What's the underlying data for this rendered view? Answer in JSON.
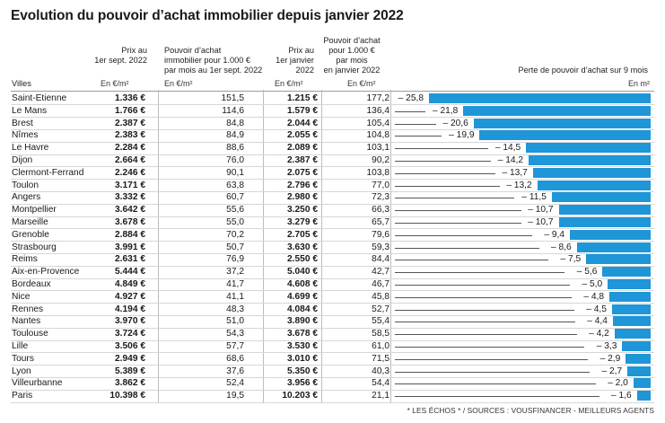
{
  "title": "Evolution du pouvoir d’achat immobilier depuis janvier 2022",
  "headers": {
    "villes": "Villes",
    "price_sept": [
      "Prix au",
      "1er sept. 2022"
    ],
    "power_sept": [
      "Pouvoir d’achat",
      "immobilier pour 1.000 €",
      "par mois au 1er sept. 2022"
    ],
    "price_jan": [
      "Prix au",
      "1er janvier",
      "2022"
    ],
    "power_jan": [
      "Pouvoir d’achat",
      "pour 1.000 €",
      "par mois",
      "en janvier 2022"
    ],
    "loss": "Perte de pouvoir d’achat sur 9 mois",
    "unit_eur_m2": "En €/m²",
    "unit_m2": "En m²"
  },
  "footer": "* LES ÉCHOS * / SOURCES : VOUSFINANCER - MEILLEURS AGENTS",
  "colors": {
    "bar": "#1e96d8"
  },
  "chart_data": {
    "type": "table",
    "columns": [
      "Villes",
      "Prix au 1er sept. 2022",
      "Pouvoir d’achat immobilier pour 1.000 € par mois au 1er sept. 2022",
      "Prix au 1er janvier 2022",
      "Pouvoir d’achat pour 1.000 € par mois en janvier 2022",
      "Perte de pouvoir d’achat sur 9 mois"
    ],
    "loss_axis": {
      "min": 0,
      "max": 25.8,
      "direction": "right-to-left"
    },
    "rows": [
      {
        "city": "Saint-Etienne",
        "price_sept": "1.336 €",
        "power_sept": "151,5",
        "price_jan": "1.215 €",
        "power_jan": "177,2",
        "loss_label": "– 25,8",
        "loss": 25.8
      },
      {
        "city": "Le Mans",
        "price_sept": "1.766 €",
        "power_sept": "114,6",
        "price_jan": "1.579 €",
        "power_jan": "136,4",
        "loss_label": "– 21,8",
        "loss": 21.8
      },
      {
        "city": "Brest",
        "price_sept": "2.387 €",
        "power_sept": "84,8",
        "price_jan": "2.044 €",
        "power_jan": "105,4",
        "loss_label": "– 20,6",
        "loss": 20.6
      },
      {
        "city": "Nîmes",
        "price_sept": "2.383 €",
        "power_sept": "84,9",
        "price_jan": "2.055 €",
        "power_jan": "104,8",
        "loss_label": "– 19,9",
        "loss": 19.9
      },
      {
        "city": "Le Havre",
        "price_sept": "2.284 €",
        "power_sept": "88,6",
        "price_jan": "2.089 €",
        "power_jan": "103,1",
        "loss_label": "– 14,5",
        "loss": 14.5
      },
      {
        "city": "Dijon",
        "price_sept": "2.664 €",
        "power_sept": "76,0",
        "price_jan": "2.387 €",
        "power_jan": "90,2",
        "loss_label": "– 14,2",
        "loss": 14.2
      },
      {
        "city": "Clermont-Ferrand",
        "price_sept": "2.246 €",
        "power_sept": "90,1",
        "price_jan": "2.075 €",
        "power_jan": "103,8",
        "loss_label": "– 13,7",
        "loss": 13.7
      },
      {
        "city": "Toulon",
        "price_sept": "3.171 €",
        "power_sept": "63,8",
        "price_jan": "2.796 €",
        "power_jan": "77,0",
        "loss_label": "– 13,2",
        "loss": 13.2
      },
      {
        "city": "Angers",
        "price_sept": "3.332 €",
        "power_sept": "60,7",
        "price_jan": "2.980 €",
        "power_jan": "72,3",
        "loss_label": "– 11,5",
        "loss": 11.5
      },
      {
        "city": "Montpellier",
        "price_sept": "3.642 €",
        "power_sept": "55,6",
        "price_jan": "3.250 €",
        "power_jan": "66,3",
        "loss_label": "– 10,7",
        "loss": 10.7
      },
      {
        "city": "Marseille",
        "price_sept": "3.678 €",
        "power_sept": "55,0",
        "price_jan": "3.279 €",
        "power_jan": "65,7",
        "loss_label": "– 10,7",
        "loss": 10.7
      },
      {
        "city": "Grenoble",
        "price_sept": "2.884 €",
        "power_sept": "70,2",
        "price_jan": "2.705 €",
        "power_jan": "79,6",
        "loss_label": "– 9,4",
        "loss": 9.4
      },
      {
        "city": "Strasbourg",
        "price_sept": "3.991 €",
        "power_sept": "50,7",
        "price_jan": "3.630 €",
        "power_jan": "59,3",
        "loss_label": "– 8,6",
        "loss": 8.6
      },
      {
        "city": "Reims",
        "price_sept": "2.631 €",
        "power_sept": "76,9",
        "price_jan": "2.550 €",
        "power_jan": "84,4",
        "loss_label": "– 7,5",
        "loss": 7.5
      },
      {
        "city": "Aix-en-Provence",
        "price_sept": "5.444 €",
        "power_sept": "37,2",
        "price_jan": "5.040 €",
        "power_jan": "42,7",
        "loss_label": "– 5,6",
        "loss": 5.6
      },
      {
        "city": "Bordeaux",
        "price_sept": "4.849 €",
        "power_sept": "41,7",
        "price_jan": "4.608 €",
        "power_jan": "46,7",
        "loss_label": "– 5,0",
        "loss": 5.0
      },
      {
        "city": "Nice",
        "price_sept": "4.927 €",
        "power_sept": "41,1",
        "price_jan": "4.699 €",
        "power_jan": "45,8",
        "loss_label": "– 4,8",
        "loss": 4.8
      },
      {
        "city": "Rennes",
        "price_sept": "4.194 €",
        "power_sept": "48,3",
        "price_jan": "4.084 €",
        "power_jan": "52,7",
        "loss_label": "– 4,5",
        "loss": 4.5
      },
      {
        "city": "Nantes",
        "price_sept": "3.970 €",
        "power_sept": "51,0",
        "price_jan": "3.890 €",
        "power_jan": "55,4",
        "loss_label": "– 4,4",
        "loss": 4.4
      },
      {
        "city": "Toulouse",
        "price_sept": "3.724 €",
        "power_sept": "54,3",
        "price_jan": "3.678 €",
        "power_jan": "58,5",
        "loss_label": "– 4,2",
        "loss": 4.2
      },
      {
        "city": "Lille",
        "price_sept": "3.506 €",
        "power_sept": "57,7",
        "price_jan": "3.530 €",
        "power_jan": "61,0",
        "loss_label": "– 3,3",
        "loss": 3.3
      },
      {
        "city": "Tours",
        "price_sept": "2.949 €",
        "power_sept": "68,6",
        "price_jan": "3.010 €",
        "power_jan": "71,5",
        "loss_label": "– 2,9",
        "loss": 2.9
      },
      {
        "city": "Lyon",
        "price_sept": "5.389 €",
        "power_sept": "37,6",
        "price_jan": "5.350 €",
        "power_jan": "40,3",
        "loss_label": "– 2,7",
        "loss": 2.7
      },
      {
        "city": "Villeurbanne",
        "price_sept": "3.862 €",
        "power_sept": "52,4",
        "price_jan": "3.956 €",
        "power_jan": "54,4",
        "loss_label": "– 2,0",
        "loss": 2.0
      },
      {
        "city": "Paris",
        "price_sept": "10.398 €",
        "power_sept": "19,5",
        "price_jan": "10.203 €",
        "power_jan": "21,1",
        "loss_label": "– 1,6",
        "loss": 1.6
      }
    ]
  }
}
